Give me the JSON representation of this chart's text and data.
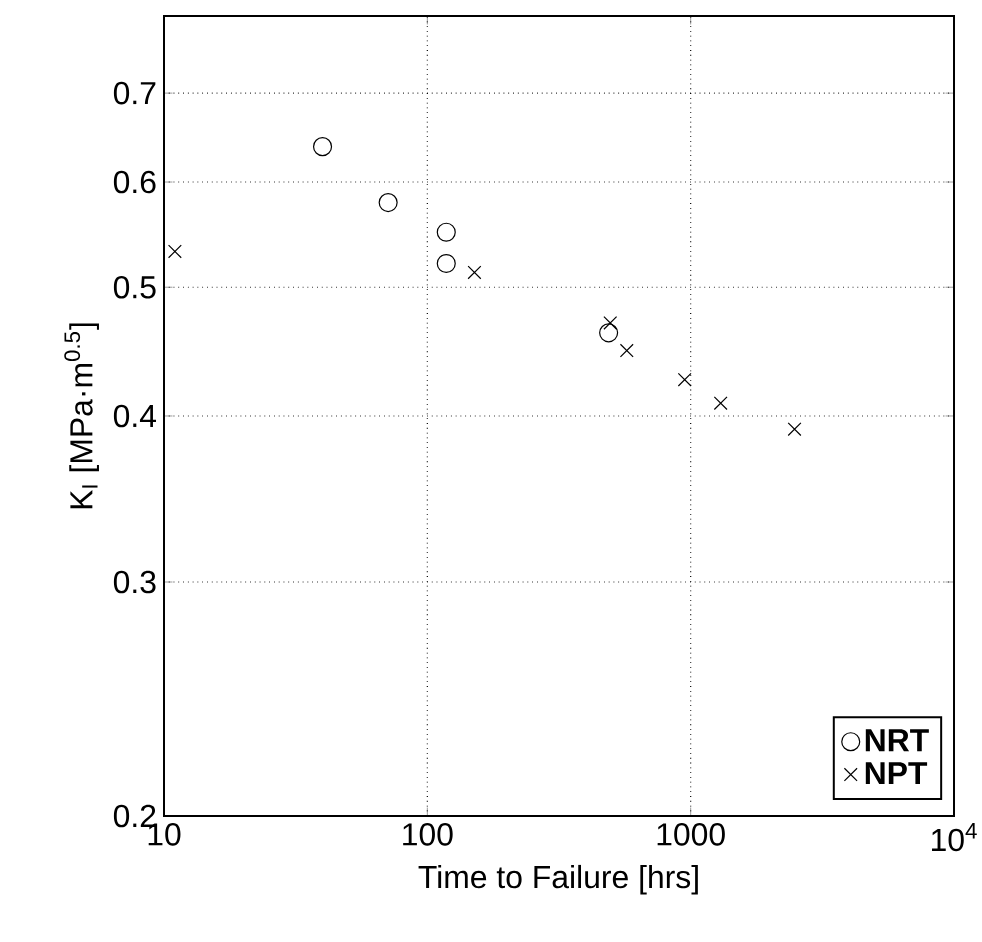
{
  "chart_data": {
    "type": "scatter",
    "xlabel": "Time to Failure [hrs]",
    "ylabel": "K$_{I}$ [MPa·m$^{0.5}$]",
    "log": "xy",
    "grid": true,
    "legend": "bottom right",
    "xlim": [
      10,
      10000
    ],
    "xticks": [
      10,
      100,
      1000,
      {
        "value": 10000,
        "label": "10$^{4}$"
      }
    ],
    "ylim": [
      0.2,
      0.8
    ],
    "yticks": [
      0.2,
      0.3,
      0.4,
      0.5,
      0.6,
      0.7
    ],
    "series": [
      {
        "name": "NRT",
        "color": "#000000",
        "marker": "circle",
        "x": [
          40,
          71,
          118,
          118,
          488
        ],
        "values": [
          0.638,
          0.579,
          0.55,
          0.521,
          0.462
        ]
      },
      {
        "name": "NPT",
        "color": "#000000",
        "marker": "cross",
        "x": [
          11,
          151,
          495,
          572,
          949,
          1300,
          2480
        ],
        "values": [
          0.532,
          0.513,
          0.47,
          0.448,
          0.426,
          0.409,
          0.391
        ]
      }
    ]
  }
}
